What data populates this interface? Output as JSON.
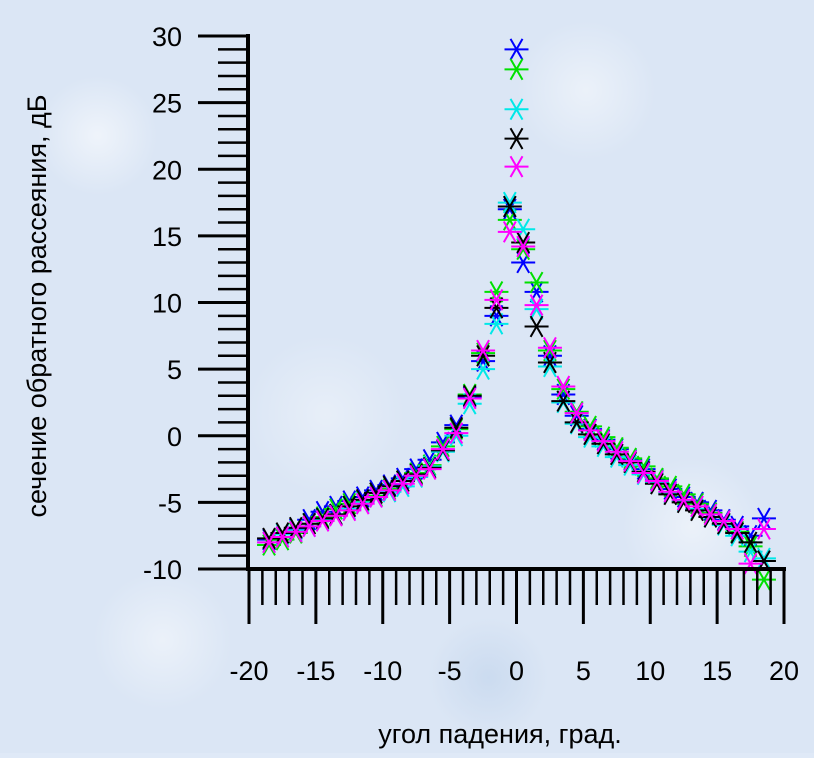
{
  "chart_data": {
    "type": "scatter",
    "xlabel": "угол падения, град.",
    "ylabel": "сечение обратного рассеяния, дБ",
    "xlim": [
      -20,
      20
    ],
    "ylim": [
      -10,
      30
    ],
    "xticks": [
      -20,
      -15,
      -10,
      -5,
      0,
      5,
      10,
      15,
      20
    ],
    "yticks": [
      -10,
      -5,
      0,
      5,
      10,
      15,
      20,
      25,
      30
    ],
    "marker": "asterisk",
    "grid": false,
    "x": [
      -18.5,
      -17.5,
      -16.5,
      -15.5,
      -14.5,
      -13.5,
      -12.5,
      -11.5,
      -10.5,
      -9.5,
      -8.5,
      -7.5,
      -6.5,
      -5.5,
      -4.5,
      -3.5,
      -2.5,
      -1.5,
      -0.5,
      0.0,
      0.5,
      1.5,
      2.5,
      3.5,
      4.5,
      5.5,
      6.5,
      7.5,
      8.5,
      9.5,
      10.5,
      11.5,
      12.5,
      13.5,
      14.5,
      15.5,
      16.5,
      17.5,
      18.5
    ],
    "series": [
      {
        "color": "#0000ff",
        "values": [
          -7.8,
          -7.6,
          -7.0,
          -6.3,
          -5.7,
          -5.3,
          -4.9,
          -4.6,
          -4.1,
          -3.7,
          -3.2,
          -2.5,
          -1.8,
          -0.5,
          0.8,
          2.9,
          5.6,
          9.0,
          17.0,
          29.0,
          13.0,
          10.8,
          6.0,
          3.1,
          1.5,
          0.5,
          -0.3,
          -1.0,
          -1.8,
          -2.5,
          -3.3,
          -4.0,
          -4.6,
          -5.0,
          -5.6,
          -6.3,
          -6.8,
          -7.5,
          -6.2
        ]
      },
      {
        "color": "#00e000",
        "values": [
          -8.2,
          -7.8,
          -7.3,
          -6.6,
          -6.1,
          -5.5,
          -5.1,
          -4.9,
          -4.5,
          -4.0,
          -3.4,
          -2.8,
          -2.2,
          -0.8,
          0.5,
          3.1,
          6.2,
          10.8,
          16.2,
          27.5,
          14.0,
          11.5,
          6.4,
          3.5,
          1.8,
          0.7,
          -0.1,
          -0.9,
          -1.7,
          -2.3,
          -3.2,
          -3.8,
          -4.4,
          -5.1,
          -5.8,
          -6.4,
          -7.2,
          -8.3,
          -10.8
        ]
      },
      {
        "color": "#00e8e8",
        "values": [
          -8.0,
          -7.4,
          -7.1,
          -6.8,
          -6.3,
          -5.9,
          -5.5,
          -5.0,
          -4.6,
          -4.2,
          -3.8,
          -3.1,
          -2.3,
          -1.2,
          0.0,
          2.4,
          5.0,
          8.4,
          17.5,
          24.5,
          15.5,
          9.5,
          5.2,
          2.5,
          0.9,
          -0.1,
          -0.8,
          -1.6,
          -2.2,
          -2.9,
          -3.5,
          -4.3,
          -4.9,
          -5.5,
          -6.1,
          -6.7,
          -7.5,
          -8.7,
          -9.2
        ]
      },
      {
        "color": "#000000",
        "values": [
          -7.7,
          -7.3,
          -6.9,
          -6.6,
          -6.2,
          -5.9,
          -5.3,
          -4.8,
          -4.3,
          -3.8,
          -3.4,
          -2.9,
          -2.4,
          -1.1,
          0.6,
          3.0,
          6.0,
          9.6,
          17.2,
          22.3,
          14.5,
          8.2,
          5.5,
          2.6,
          1.0,
          0.1,
          -0.6,
          -1.4,
          -2.0,
          -2.7,
          -3.6,
          -4.4,
          -5.0,
          -5.6,
          -6.1,
          -6.6,
          -7.3,
          -8.0,
          -9.4
        ]
      },
      {
        "color": "#ff00ff",
        "values": [
          -8.0,
          -7.6,
          -7.2,
          -6.8,
          -6.4,
          -6.0,
          -5.6,
          -5.1,
          -4.6,
          -4.1,
          -3.6,
          -3.0,
          -2.5,
          -1.0,
          0.2,
          2.8,
          6.4,
          10.2,
          15.3,
          20.2,
          14.2,
          9.8,
          6.6,
          3.7,
          1.7,
          0.4,
          -0.4,
          -1.2,
          -1.9,
          -2.8,
          -3.4,
          -4.2,
          -4.8,
          -5.3,
          -5.9,
          -6.4,
          -7.0,
          -9.6,
          -7.0
        ]
      }
    ]
  }
}
